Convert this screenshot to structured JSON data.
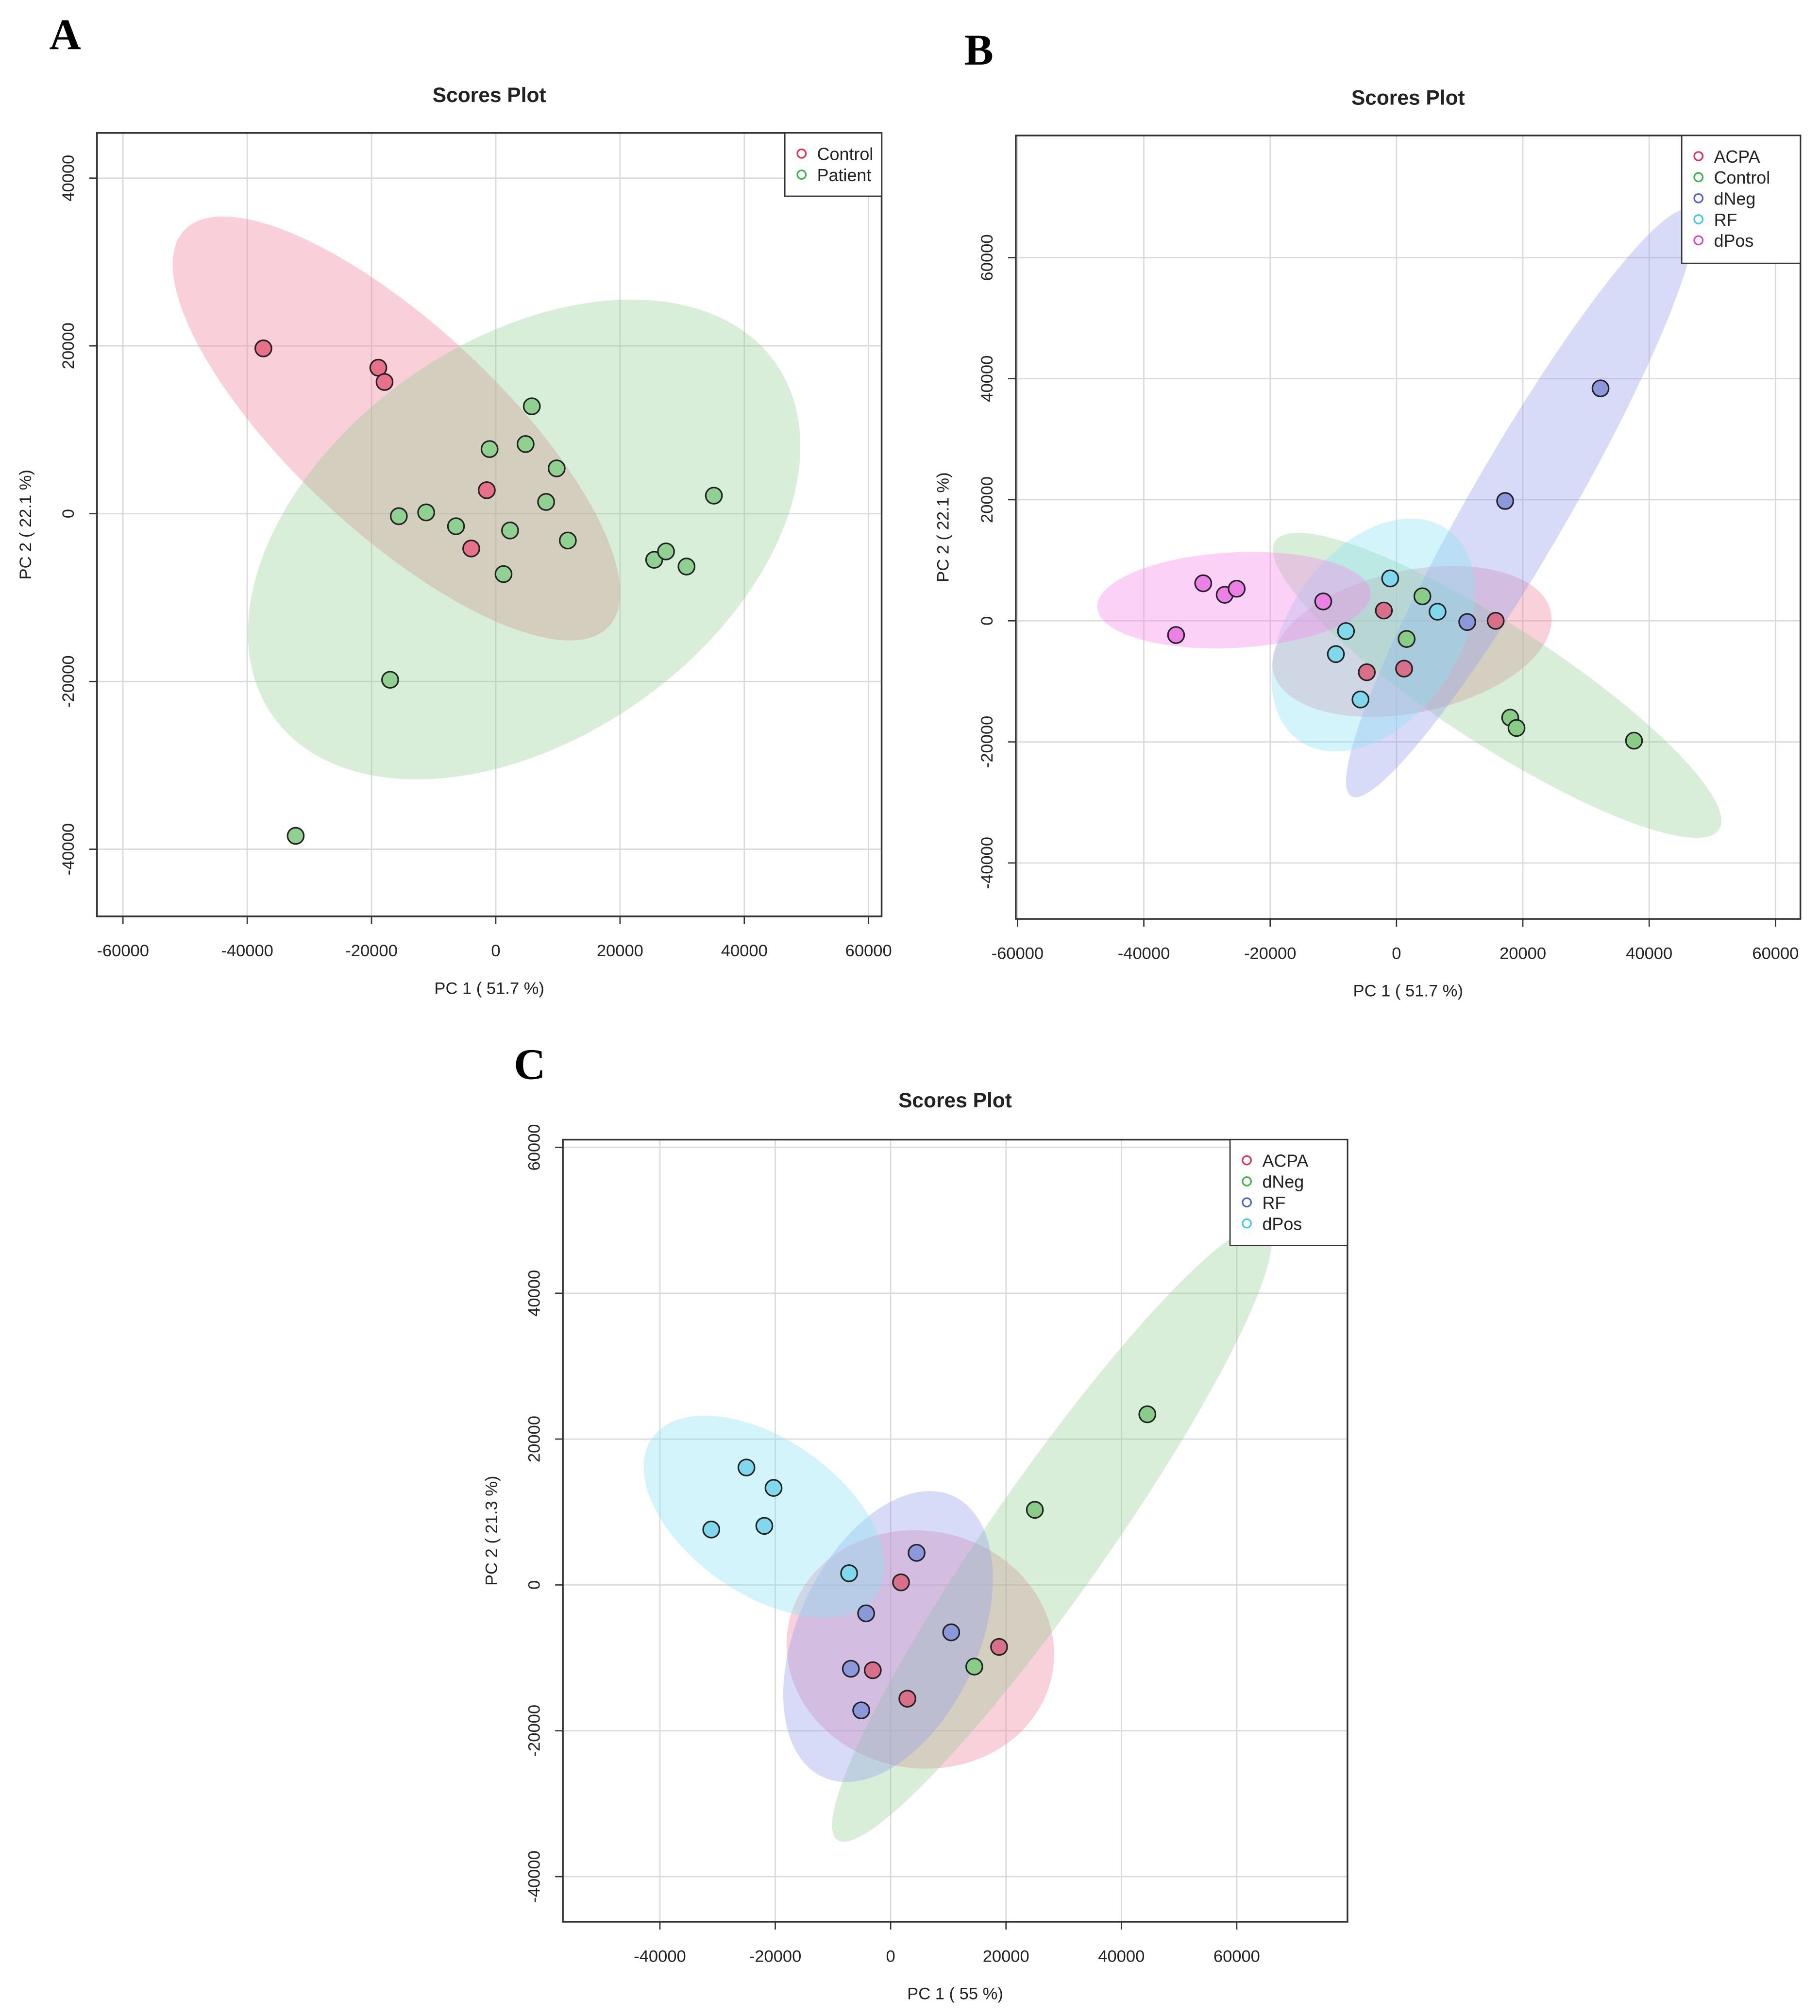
{
  "panels": [
    {
      "letter": "A"
    },
    {
      "letter": "B"
    },
    {
      "letter": "C"
    }
  ],
  "colors": {
    "ACPA": "#e0304f",
    "Control": "#3cb34a",
    "Patient": "#3cb34a",
    "dNeg_B": "#5060d0",
    "RF_B": "#40c8e8",
    "dPos_B": "#e040d0",
    "dNeg_C": "#3cb34a",
    "RF_C": "#5060d0",
    "dPos_C": "#40c8e8"
  },
  "chart_data": [
    {
      "type": "scatter",
      "title": "Scores Plot",
      "xlabel": "PC 1 ( 51.7 %)",
      "ylabel": "PC 2 ( 22.1 %)",
      "xticks": [
        -60000,
        -40000,
        -20000,
        0,
        20000,
        40000,
        60000
      ],
      "yticks": [
        -40000,
        -20000,
        0,
        20000,
        40000
      ],
      "grid": true,
      "legend_position": "top-right",
      "confidence_ellipses": true,
      "series": [
        {
          "name": "Control",
          "color": "#e0304f",
          "fill": "#e8708a",
          "ellipse": "rgba(240,140,165,0.42)",
          "points": [
            [
              -37400,
              19700
            ],
            [
              -18900,
              17400
            ],
            [
              -17900,
              15700
            ],
            [
              -1450,
              2800
            ],
            [
              -3950,
              -4150
            ]
          ]
        },
        {
          "name": "Patient",
          "color": "#3cb34a",
          "fill": "#90d090",
          "ellipse": "rgba(140,205,140,0.34)",
          "points": [
            [
              5800,
              12800
            ],
            [
              -1000,
              7700
            ],
            [
              4800,
              8300
            ],
            [
              9800,
              5400
            ],
            [
              8100,
              1400
            ],
            [
              -11200,
              150
            ],
            [
              -15600,
              -300
            ],
            [
              -6400,
              -1500
            ],
            [
              2300,
              -2000
            ],
            [
              11600,
              -3200
            ],
            [
              1250,
              -7200
            ],
            [
              25500,
              -5500
            ],
            [
              27400,
              -4500
            ],
            [
              30700,
              -6300
            ],
            [
              35100,
              2150
            ],
            [
              -17000,
              -19800
            ],
            [
              -32200,
              -38400
            ]
          ]
        }
      ]
    },
    {
      "type": "scatter",
      "title": "Scores Plot",
      "xlabel": "PC 1 ( 51.7 %)",
      "ylabel": "PC 2 ( 22.1 %)",
      "xticks": [
        -60000,
        -40000,
        -20000,
        0,
        20000,
        40000,
        60000
      ],
      "yticks": [
        -40000,
        -20000,
        0,
        20000,
        40000,
        60000
      ],
      "grid": true,
      "legend_position": "top-right",
      "confidence_ellipses": true,
      "series": [
        {
          "name": "ACPA",
          "color": "#e0304f",
          "fill": "#d8708a",
          "ellipse": "rgba(240,140,165,0.40)",
          "points": [
            [
              -2000,
              1700
            ],
            [
              15700,
              0
            ],
            [
              -4700,
              -8500
            ],
            [
              1200,
              -7900
            ]
          ]
        },
        {
          "name": "Control",
          "color": "#3cb34a",
          "fill": "#88cc88",
          "ellipse": "rgba(140,205,140,0.34)",
          "points": [
            [
              4100,
              4050
            ],
            [
              1600,
              -3000
            ],
            [
              18000,
              -16000
            ],
            [
              19000,
              -17700
            ],
            [
              37600,
              -19800
            ]
          ]
        },
        {
          "name": "dNeg",
          "color": "#5060d0",
          "fill": "#8c98dc",
          "ellipse": "rgba(150,160,235,0.38)",
          "points": [
            [
              32300,
              38400
            ],
            [
              17200,
              19800
            ],
            [
              11200,
              -200
            ]
          ]
        },
        {
          "name": "RF",
          "color": "#40c8e8",
          "fill": "#80d8ec",
          "ellipse": "rgba(140,225,245,0.38)",
          "points": [
            [
              -1000,
              7000
            ],
            [
              6500,
              1500
            ],
            [
              -8000,
              -1700
            ],
            [
              -9600,
              -5500
            ],
            [
              -5700,
              -13000
            ]
          ]
        },
        {
          "name": "dPos",
          "color": "#e040d0",
          "fill": "#ec80e6",
          "ellipse": "rgba(245,140,235,0.40)",
          "points": [
            [
              -30600,
              6200
            ],
            [
              -27200,
              4300
            ],
            [
              -25300,
              5300
            ],
            [
              -34900,
              -2350
            ],
            [
              -11600,
              3200
            ]
          ]
        }
      ]
    },
    {
      "type": "scatter",
      "title": "Scores Plot",
      "xlabel": "PC 1 ( 55 %)",
      "ylabel": "PC 2 ( 21.3 %)",
      "xticks": [
        -40000,
        -20000,
        0,
        20000,
        40000,
        60000
      ],
      "yticks": [
        -40000,
        -20000,
        0,
        20000,
        40000,
        60000
      ],
      "grid": true,
      "legend_position": "top-right",
      "confidence_ellipses": true,
      "series": [
        {
          "name": "ACPA",
          "color": "#e0304f",
          "fill": "#d8708a",
          "ellipse": "rgba(240,140,165,0.40)",
          "points": [
            [
              1800,
              350
            ],
            [
              18800,
              -8500
            ],
            [
              -3100,
              -11700
            ],
            [
              2900,
              -15600
            ]
          ]
        },
        {
          "name": "dNeg",
          "color": "#3cb34a",
          "fill": "#88cc88",
          "ellipse": "rgba(140,205,140,0.34)",
          "points": [
            [
              44500,
              23400
            ],
            [
              25000,
              10300
            ],
            [
              14500,
              -11200
            ]
          ]
        },
        {
          "name": "RF",
          "color": "#5060d0",
          "fill": "#8c98dc",
          "ellipse": "rgba(150,160,235,0.38)",
          "points": [
            [
              4500,
              4400
            ],
            [
              -4250,
              -3900
            ],
            [
              10500,
              -6500
            ],
            [
              -6900,
              -11500
            ],
            [
              -5100,
              -17200
            ]
          ]
        },
        {
          "name": "dPos",
          "color": "#40c8e8",
          "fill": "#80d8ec",
          "ellipse": "rgba(140,225,245,0.38)",
          "points": [
            [
              -25000,
              16100
            ],
            [
              -20300,
              13300
            ],
            [
              -31100,
              7600
            ],
            [
              -21900,
              8100
            ],
            [
              -7200,
              1600
            ]
          ]
        }
      ]
    }
  ]
}
